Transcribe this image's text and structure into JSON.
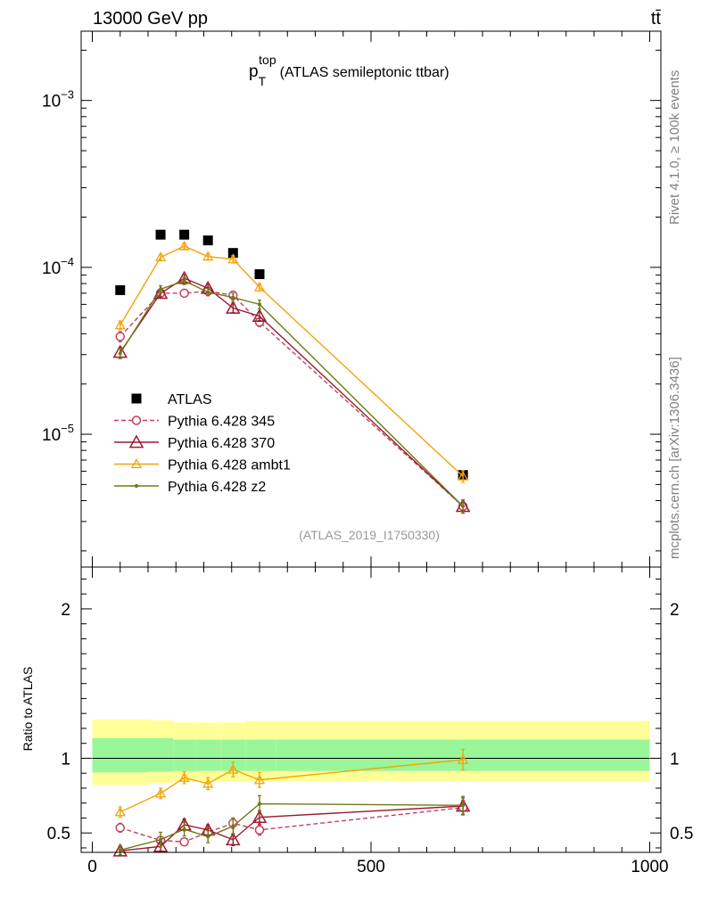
{
  "header": {
    "left": "13000 GeV pp",
    "right": "tt̄"
  },
  "title": {
    "main": "p",
    "sub": "T",
    "sup": "top",
    "rest": "(ATLAS semileptonic ttbar)"
  },
  "side_labels": {
    "rivet": "Rivet 4.1.0, ≥ 100k events",
    "mcplots": "mcplots.cern.ch [arXiv:1306.3436]"
  },
  "analysis_id": "(ATLAS_2019_I1750330)",
  "chart_data": [
    {
      "type": "scatter",
      "panel": "main",
      "yscale": "log",
      "ylim": [
        1.6e-06,
        0.0026
      ],
      "xlim": [
        -20,
        1020
      ],
      "y_ticks": [
        {
          "value": 1e-05,
          "base": "10",
          "exp": "−5"
        },
        {
          "value": 0.0001,
          "base": "10",
          "exp": "−4"
        },
        {
          "value": 0.001,
          "base": "10",
          "exp": "−3"
        }
      ],
      "series": [
        {
          "name": "ATLAS",
          "color": "#000000",
          "marker": "square",
          "x": [
            50,
            122.5,
            165,
            207.5,
            252.5,
            300,
            665
          ],
          "y": [
            7.3e-05,
            0.000157,
            0.000157,
            0.000145,
            0.000122,
            9.1e-05,
            5.7e-06
          ]
        },
        {
          "name": "Pythia 6.428 345",
          "color": "#c0425a",
          "marker": "circle",
          "dashed": true,
          "x": [
            50,
            122.5,
            165,
            207.5,
            252.5,
            300,
            665
          ],
          "y": [
            3.85e-05,
            7e-05,
            7e-05,
            7.2e-05,
            6.8e-05,
            4.7e-05,
            3.7e-06
          ],
          "err": [
            0.07,
            0.05,
            0.05,
            0.05,
            0.06,
            0.06,
            0.09
          ]
        },
        {
          "name": "Pythia 6.428 370",
          "color": "#9b1b30",
          "marker": "triangle",
          "x": [
            50,
            122.5,
            165,
            207.5,
            252.5,
            300,
            665
          ],
          "y": [
            3.1e-05,
            7e-05,
            8.6e-05,
            7.5e-05,
            5.7e-05,
            5.1e-05,
            3.7e-06
          ],
          "err": [
            0.07,
            0.05,
            0.05,
            0.05,
            0.06,
            0.06,
            0.09
          ]
        },
        {
          "name": "Pythia 6.428 ambt1",
          "color": "#f5a30a",
          "marker": "triangle-small",
          "x": [
            50,
            122.5,
            165,
            207.5,
            252.5,
            300,
            665
          ],
          "y": [
            4.5e-05,
            0.000115,
            0.000134,
            0.000116,
            0.000112,
            7.6e-05,
            5.6e-06
          ],
          "err": [
            0.06,
            0.04,
            0.04,
            0.04,
            0.05,
            0.05,
            0.08
          ]
        },
        {
          "name": "Pythia 6.428 z2",
          "color": "#6e7a13",
          "marker": "dot",
          "x": [
            50,
            122.5,
            165,
            207.5,
            252.5,
            300,
            665
          ],
          "y": [
            3.05e-05,
            7.4e-05,
            8.3e-05,
            7.1e-05,
            6.6e-05,
            6e-05,
            3.7e-06
          ],
          "err": [
            0.07,
            0.05,
            0.05,
            0.05,
            0.06,
            0.06,
            0.09
          ]
        }
      ]
    },
    {
      "type": "line",
      "panel": "ratio",
      "ylabel": "Ratio to ATLAS",
      "ylim": [
        0.37,
        2.28
      ],
      "xlim": [
        -20,
        1020
      ],
      "x_ticks": [
        0,
        500,
        1000
      ],
      "x_tick_labels": [
        "0",
        "500",
        "1000"
      ],
      "y_ticks": [
        0.5,
        1,
        2
      ],
      "y_tick_labels": [
        "0.5",
        "1",
        "2"
      ],
      "bands": {
        "edges": [
          0,
          100,
          145,
          185,
          230,
          275,
          330,
          1000
        ],
        "inner_lo": [
          0.905,
          0.91,
          0.915,
          0.915,
          0.915,
          0.915,
          0.915
        ],
        "inner_hi": [
          1.135,
          1.135,
          1.125,
          1.125,
          1.125,
          1.125,
          1.125
        ],
        "outer_lo": [
          0.82,
          0.835,
          0.845,
          0.845,
          0.845,
          0.845,
          0.845
        ],
        "outer_hi": [
          1.26,
          1.255,
          1.24,
          1.24,
          1.24,
          1.25,
          1.25
        ],
        "inner_color": "#99f799",
        "outer_color": "#ffff99"
      },
      "series": [
        {
          "name": "Pythia 6.428 345",
          "color": "#c0425a",
          "marker": "circle",
          "dashed": true,
          "x": [
            50,
            122.5,
            165,
            207.5,
            252.5,
            300,
            665
          ],
          "y": [
            0.535,
            0.45,
            0.44,
            0.505,
            0.565,
            0.52,
            0.67
          ],
          "err": [
            0.03,
            0.025,
            0.025,
            0.025,
            0.035,
            0.035,
            0.05
          ]
        },
        {
          "name": "Pythia 6.428 370",
          "color": "#9b1b30",
          "marker": "triangle",
          "x": [
            50,
            122.5,
            165,
            207.5,
            252.5,
            300,
            665
          ],
          "y": [
            0.38,
            0.41,
            0.555,
            0.52,
            0.455,
            0.605,
            0.68
          ],
          "err": [
            0.03,
            0.03,
            0.04,
            0.035,
            0.04,
            0.045,
            0.055
          ]
        },
        {
          "name": "Pythia 6.428 ambt1",
          "color": "#f5a30a",
          "marker": "triangle-small",
          "x": [
            50,
            122.5,
            165,
            207.5,
            252.5,
            300,
            665
          ],
          "y": [
            0.64,
            0.765,
            0.87,
            0.83,
            0.925,
            0.855,
            0.99
          ],
          "err": [
            0.035,
            0.035,
            0.04,
            0.04,
            0.05,
            0.05,
            0.07
          ]
        },
        {
          "name": "Pythia 6.428 z2",
          "color": "#6e7a13",
          "marker": "dot",
          "x": [
            50,
            122.5,
            165,
            207.5,
            252.5,
            300,
            665
          ],
          "y": [
            0.385,
            0.455,
            0.525,
            0.475,
            0.545,
            0.695,
            0.685
          ],
          "err": [
            0.03,
            0.05,
            0.045,
            0.04,
            0.055,
            0.055,
            0.06
          ]
        }
      ]
    }
  ]
}
